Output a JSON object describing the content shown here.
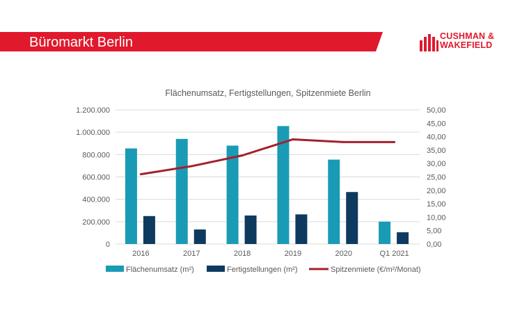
{
  "header": {
    "title": "Büromarkt Berlin",
    "logo_line1": "CUSHMAN &",
    "logo_line2": "WAKEFIELD"
  },
  "colors": {
    "brand_red": "#e0192d",
    "umsatz": "#1a9bb5",
    "fertig": "#0e3a5f",
    "miete": "#a3202c"
  },
  "chart_data": {
    "type": "bar",
    "title": "Flächenumsatz, Fertigstellungen, Spitzenmiete Berlin",
    "categories": [
      "2016",
      "2017",
      "2018",
      "2019",
      "2020",
      "Q1 2021"
    ],
    "series": [
      {
        "name": "Flächenumsatz (m²)",
        "type": "bar",
        "axis": "left",
        "values": [
          855000,
          940000,
          880000,
          1055000,
          755000,
          200000
        ]
      },
      {
        "name": "Fertigstellungen (m²)",
        "type": "bar",
        "axis": "left",
        "values": [
          250000,
          130000,
          255000,
          265000,
          465000,
          105000
        ]
      },
      {
        "name": "Spitzenmiete (€/m²/Monat)",
        "type": "line",
        "axis": "right",
        "values": [
          26.0,
          29.0,
          33.0,
          39.0,
          38.0,
          38.0
        ]
      }
    ],
    "y_left": {
      "min": 0,
      "max": 1200000,
      "ticks": [
        "0",
        "200.000",
        "400.000",
        "600.000",
        "800.000",
        "1.000.000",
        "1.200.000"
      ]
    },
    "y_right": {
      "min": 0,
      "max": 50,
      "ticks": [
        "0,00",
        "5,00",
        "10,00",
        "15,00",
        "20,00",
        "25,00",
        "30,00",
        "35,00",
        "40,00",
        "45,00",
        "50,00"
      ]
    },
    "grid": true,
    "legend": "bottom"
  }
}
